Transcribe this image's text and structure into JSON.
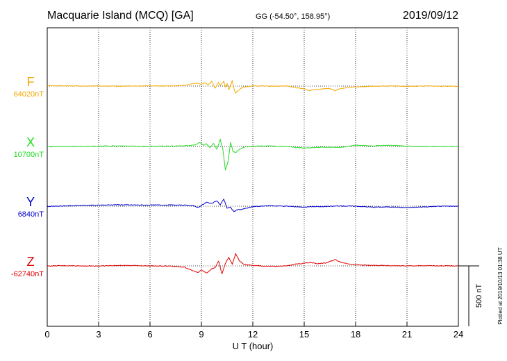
{
  "header": {
    "station": "Macquarie Island (MCQ)  [GA]",
    "coords": "GG (-54.50°, 158.95°)",
    "date": "2019/09/12"
  },
  "footer": {
    "plotted": "Plotted at 2019/10/13 01:38 UT"
  },
  "chart_data": {
    "type": "line",
    "xlabel": "U T (hour)",
    "xlim": [
      0,
      24
    ],
    "xticks": [
      0,
      3,
      6,
      9,
      12,
      15,
      18,
      21,
      24
    ],
    "grid": true,
    "scale_bar": "500 nT",
    "colors": {
      "F": "#f5a800",
      "X": "#22dd22",
      "Y": "#0000cc",
      "Z": "#dd0000"
    },
    "series": [
      {
        "name": "F",
        "baseline": "64020nT",
        "points": [
          [
            0,
            3
          ],
          [
            1,
            2
          ],
          [
            2,
            0
          ],
          [
            3,
            1
          ],
          [
            4,
            -1
          ],
          [
            5,
            0
          ],
          [
            6,
            2
          ],
          [
            7,
            1
          ],
          [
            8,
            6
          ],
          [
            8.5,
            18
          ],
          [
            8.8,
            25
          ],
          [
            9.0,
            14
          ],
          [
            9.2,
            28
          ],
          [
            9.4,
            10
          ],
          [
            9.6,
            40
          ],
          [
            9.8,
            -20
          ],
          [
            10.0,
            30
          ],
          [
            10.1,
            5
          ],
          [
            10.3,
            38
          ],
          [
            10.4,
            -5
          ],
          [
            10.5,
            20
          ],
          [
            10.6,
            -32
          ],
          [
            10.8,
            45
          ],
          [
            10.9,
            -22
          ],
          [
            11.0,
            -58
          ],
          [
            11.2,
            -30
          ],
          [
            11.4,
            -10
          ],
          [
            12,
            2
          ],
          [
            13,
            -1
          ],
          [
            14,
            0
          ],
          [
            14.5,
            -12
          ],
          [
            15.0,
            -22
          ],
          [
            15.3,
            -38
          ],
          [
            15.6,
            -28
          ],
          [
            16,
            -25
          ],
          [
            16.5,
            -18
          ],
          [
            16.8,
            -40
          ],
          [
            17.1,
            -22
          ],
          [
            17.5,
            -12
          ],
          [
            18,
            -6
          ],
          [
            19,
            -2
          ],
          [
            20,
            0
          ],
          [
            21,
            -2
          ],
          [
            22,
            0
          ],
          [
            23,
            -1
          ],
          [
            24,
            -1
          ]
        ]
      },
      {
        "name": "X",
        "baseline": "10700nT",
        "points": [
          [
            0,
            -2
          ],
          [
            1,
            0
          ],
          [
            2,
            1
          ],
          [
            3,
            3
          ],
          [
            4,
            4
          ],
          [
            5,
            3
          ],
          [
            6,
            1
          ],
          [
            7,
            3
          ],
          [
            8,
            5
          ],
          [
            8.6,
            12
          ],
          [
            8.9,
            32
          ],
          [
            9.1,
            10
          ],
          [
            9.3,
            22
          ],
          [
            9.5,
            -8
          ],
          [
            9.7,
            28
          ],
          [
            9.9,
            -25
          ],
          [
            10.1,
            58
          ],
          [
            10.25,
            -20
          ],
          [
            10.4,
            -195
          ],
          [
            10.55,
            -130
          ],
          [
            10.7,
            35
          ],
          [
            10.85,
            -45
          ],
          [
            11.0,
            -50
          ],
          [
            11.2,
            -28
          ],
          [
            11.5,
            -4
          ],
          [
            12,
            2
          ],
          [
            13,
            4
          ],
          [
            14,
            0
          ],
          [
            14.5,
            -8
          ],
          [
            15,
            -13
          ],
          [
            15.5,
            -10
          ],
          [
            16,
            -5
          ],
          [
            16.8,
            -8
          ],
          [
            17.3,
            -5
          ],
          [
            18,
            10
          ],
          [
            19,
            5
          ],
          [
            20,
            10
          ],
          [
            21,
            2
          ],
          [
            22,
            0
          ],
          [
            23,
            -1
          ],
          [
            24,
            0
          ]
        ]
      },
      {
        "name": "Y",
        "baseline": "6840nT",
        "points": [
          [
            0,
            -2
          ],
          [
            1,
            2
          ],
          [
            2,
            6
          ],
          [
            3,
            8
          ],
          [
            4,
            12
          ],
          [
            5,
            10
          ],
          [
            6,
            9
          ],
          [
            7,
            10
          ],
          [
            8,
            8
          ],
          [
            8.5,
            4
          ],
          [
            8.8,
            -10
          ],
          [
            9.1,
            15
          ],
          [
            9.3,
            32
          ],
          [
            9.6,
            22
          ],
          [
            9.9,
            45
          ],
          [
            10.1,
            10
          ],
          [
            10.3,
            60
          ],
          [
            10.5,
            -15
          ],
          [
            10.7,
            -10
          ],
          [
            10.9,
            -45
          ],
          [
            11.1,
            -30
          ],
          [
            11.4,
            -25
          ],
          [
            12,
            -4
          ],
          [
            13,
            4
          ],
          [
            14,
            0
          ],
          [
            15,
            -8
          ],
          [
            15.5,
            -3
          ],
          [
            16,
            -5
          ],
          [
            17,
            2
          ],
          [
            18,
            0
          ],
          [
            19,
            -8
          ],
          [
            20,
            -6
          ],
          [
            21,
            -12
          ],
          [
            22,
            -6
          ],
          [
            23,
            0
          ],
          [
            24,
            0
          ]
        ]
      },
      {
        "name": "Z",
        "baseline": "-62740nT",
        "points": [
          [
            0,
            -1
          ],
          [
            1,
            2
          ],
          [
            2,
            0
          ],
          [
            3,
            -1
          ],
          [
            4,
            3
          ],
          [
            5,
            4
          ],
          [
            6,
            0
          ],
          [
            7,
            -1
          ],
          [
            8,
            -10
          ],
          [
            8.5,
            -40
          ],
          [
            8.8,
            -55
          ],
          [
            9.0,
            -30
          ],
          [
            9.3,
            -60
          ],
          [
            9.6,
            -25
          ],
          [
            9.8,
            -15
          ],
          [
            10.0,
            40
          ],
          [
            10.2,
            -65
          ],
          [
            10.4,
            22
          ],
          [
            10.6,
            70
          ],
          [
            10.8,
            15
          ],
          [
            11.0,
            100
          ],
          [
            11.2,
            45
          ],
          [
            11.5,
            10
          ],
          [
            12,
            5
          ],
          [
            13,
            -5
          ],
          [
            14,
            0
          ],
          [
            14.5,
            15
          ],
          [
            15,
            22
          ],
          [
            15.4,
            28
          ],
          [
            15.8,
            18
          ],
          [
            16.3,
            25
          ],
          [
            16.8,
            52
          ],
          [
            17.2,
            28
          ],
          [
            18,
            8
          ],
          [
            19,
            4
          ],
          [
            20,
            2
          ],
          [
            21,
            0
          ],
          [
            22,
            1
          ],
          [
            23,
            1
          ],
          [
            24,
            0
          ]
        ]
      }
    ]
  }
}
